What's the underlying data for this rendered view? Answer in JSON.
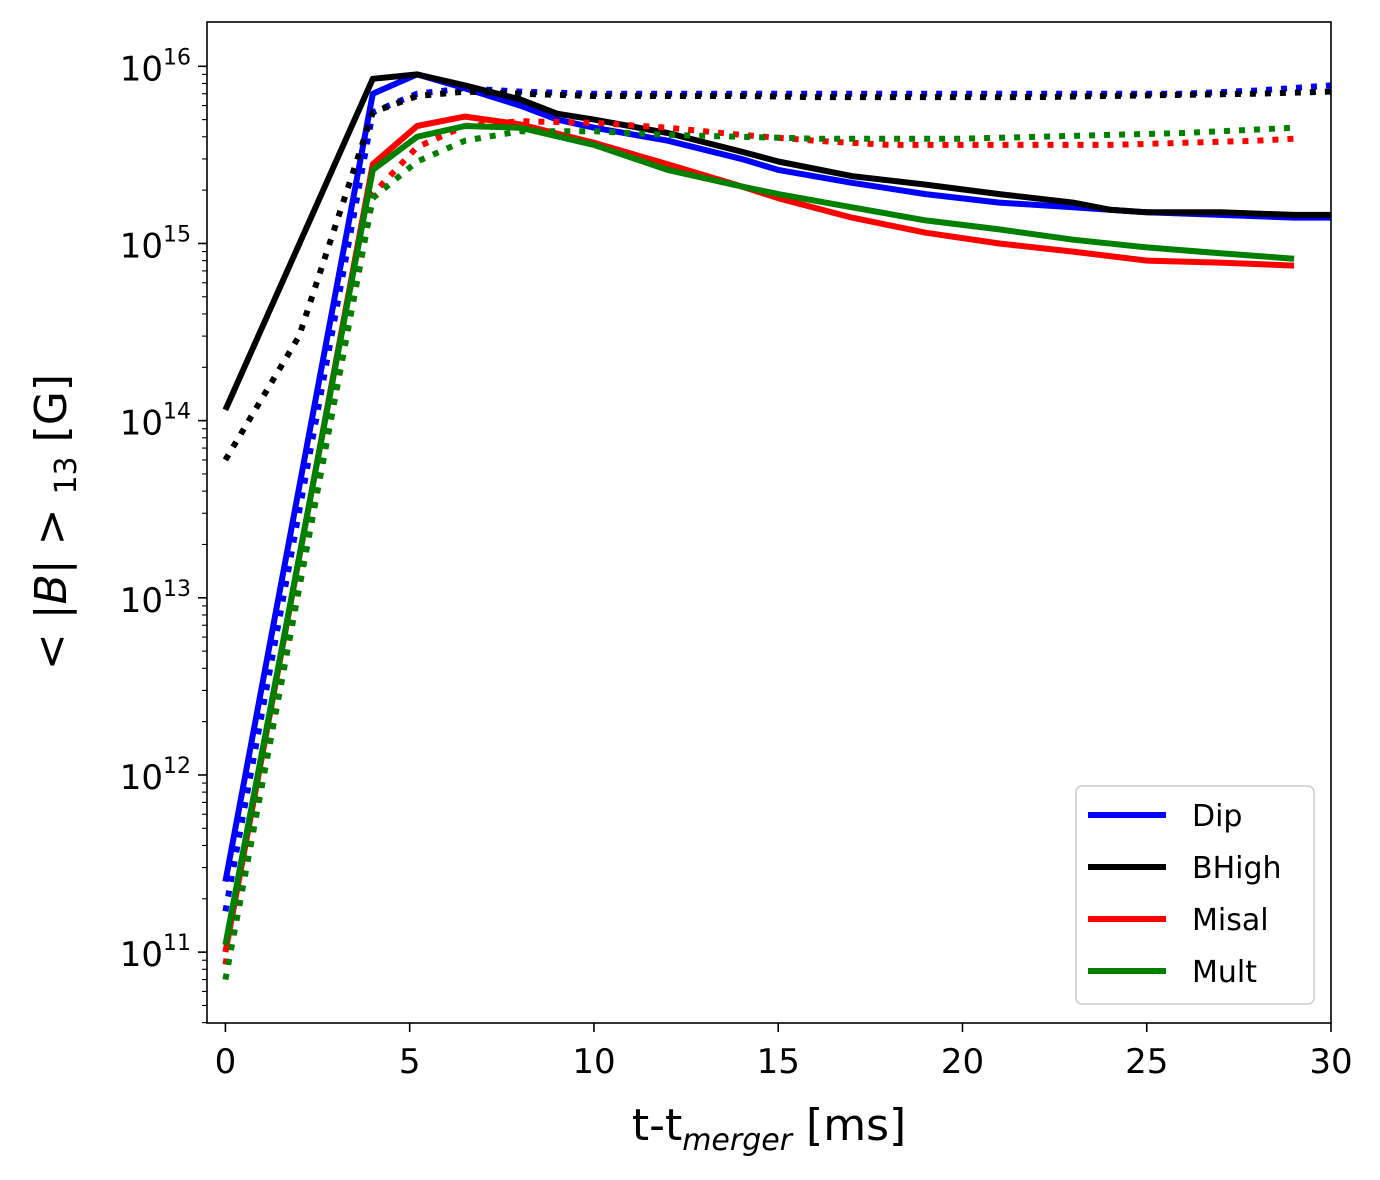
{
  "chart_data": {
    "type": "line",
    "title": "",
    "xlabel": {
      "main": "t-t",
      "sub": "merger",
      "unit": " [ms]"
    },
    "ylabel": {
      "prefix": "< |",
      "var": "B",
      "mid": "| > ",
      "sub": "13",
      "unit": " [G]"
    },
    "xlim": [
      -0.5,
      30
    ],
    "ylim_log10": [
      10.6,
      16.25
    ],
    "y_scale": "log",
    "x_ticks": [
      0,
      5,
      10,
      15,
      20,
      25,
      30
    ],
    "x_tick_labels": [
      "0",
      "5",
      "10",
      "15",
      "20",
      "25",
      "30"
    ],
    "y_ticks": [
      {
        "base": "10",
        "exp": "11",
        "value_log10": 11
      },
      {
        "base": "10",
        "exp": "12",
        "value_log10": 12
      },
      {
        "base": "10",
        "exp": "13",
        "value_log10": 13
      },
      {
        "base": "10",
        "exp": "14",
        "value_log10": 14
      },
      {
        "base": "10",
        "exp": "15",
        "value_log10": 15
      },
      {
        "base": "10",
        "exp": "16",
        "value_log10": 16
      }
    ],
    "legend_position": "bottom-right",
    "legend": [
      {
        "name": "Dip",
        "color": "#0000ff"
      },
      {
        "name": "BHigh",
        "color": "#000000"
      },
      {
        "name": "Misal",
        "color": "#ff0000"
      },
      {
        "name": "Mult",
        "color": "#008000"
      }
    ],
    "series": [
      {
        "name": "Dip",
        "style": "solid",
        "color": "#0000ff",
        "x": [
          0,
          4,
          5.2,
          6.5,
          8,
          9,
          10,
          12,
          14,
          15,
          17,
          19,
          21,
          23,
          25,
          27,
          29,
          30
        ],
        "y": [
          250000000000.0,
          7000000000000000.0,
          9000000000000000.0,
          7500000000000000.0,
          6000000000000000.0,
          5000000000000000.0,
          4500000000000000.0,
          3800000000000000.0,
          3000000000000000.0,
          2600000000000000.0,
          2200000000000000.0,
          1900000000000000.0,
          1700000000000000.0,
          1600000000000000.0,
          1500000000000000.0,
          1450000000000000.0,
          1400000000000000.0,
          1400000000000000.0
        ]
      },
      {
        "name": "Dip",
        "style": "dotted",
        "color": "#0000ff",
        "x": [
          0,
          4,
          5.2,
          6.5,
          8,
          10,
          12,
          14,
          16,
          18,
          20,
          22,
          24,
          26,
          28,
          30
        ],
        "y": [
          170000000000.0,
          5500000000000000.0,
          7000000000000000.0,
          7500000000000000.0,
          7200000000000000.0,
          7000000000000000.0,
          7000000000000000.0,
          7000000000000000.0,
          7000000000000000.0,
          7000000000000000.0,
          7000000000000000.0,
          7000000000000000.0,
          7000000000000000.0,
          7000000000000000.0,
          7300000000000000.0,
          7800000000000000.0
        ]
      },
      {
        "name": "BHigh",
        "style": "solid",
        "color": "#000000",
        "x": [
          0,
          4,
          5.2,
          6.5,
          8,
          9,
          10,
          12,
          14,
          15,
          17,
          19,
          21,
          23,
          24,
          25,
          27,
          29,
          30
        ],
        "y": [
          115000000000000.0,
          8500000000000000.0,
          9000000000000000.0,
          7800000000000000.0,
          6500000000000000.0,
          5400000000000000.0,
          5000000000000000.0,
          4200000000000000.0,
          3300000000000000.0,
          2900000000000000.0,
          2400000000000000.0,
          2150000000000000.0,
          1900000000000000.0,
          1700000000000000.0,
          1550000000000000.0,
          1500000000000000.0,
          1500000000000000.0,
          1450000000000000.0,
          1450000000000000.0
        ]
      },
      {
        "name": "BHigh",
        "style": "dotted",
        "color": "#000000",
        "x": [
          0,
          2,
          4,
          5.2,
          6.5,
          8,
          10,
          12,
          14,
          16,
          18,
          20,
          22,
          24,
          26,
          28,
          30
        ],
        "y": [
          60000000000000.0,
          300000000000000.0,
          5500000000000000.0,
          6800000000000000.0,
          7200000000000000.0,
          7000000000000000.0,
          6800000000000000.0,
          6800000000000000.0,
          6800000000000000.0,
          6700000000000000.0,
          6700000000000000.0,
          6700000000000000.0,
          6700000000000000.0,
          6800000000000000.0,
          6900000000000000.0,
          7000000000000000.0,
          7200000000000000.0
        ]
      },
      {
        "name": "Misal",
        "style": "solid",
        "color": "#ff0000",
        "x": [
          0,
          4,
          5.2,
          6.5,
          8,
          10,
          12,
          14,
          15,
          17,
          19,
          21,
          23,
          25,
          27,
          29
        ],
        "y": [
          100000000000.0,
          2800000000000000.0,
          4600000000000000.0,
          5200000000000000.0,
          4700000000000000.0,
          3700000000000000.0,
          2800000000000000.0,
          2100000000000000.0,
          1800000000000000.0,
          1400000000000000.0,
          1150000000000000.0,
          1000000000000000.0,
          900000000000000.0,
          800000000000000.0,
          780000000000000.0,
          750000000000000.0
        ]
      },
      {
        "name": "Misal",
        "style": "dotted",
        "color": "#ff0000",
        "x": [
          0,
          4,
          5.2,
          6.5,
          8,
          10,
          12,
          14,
          16,
          18,
          20,
          22,
          24,
          26,
          28,
          29
        ],
        "y": [
          85000000000.0,
          1900000000000000.0,
          3500000000000000.0,
          4600000000000000.0,
          4900000000000000.0,
          4800000000000000.0,
          4500000000000000.0,
          4100000000000000.0,
          3800000000000000.0,
          3600000000000000.0,
          3600000000000000.0,
          3600000000000000.0,
          3600000000000000.0,
          3700000000000000.0,
          3800000000000000.0,
          3900000000000000.0
        ]
      },
      {
        "name": "Mult",
        "style": "solid",
        "color": "#008000",
        "x": [
          0,
          4,
          5.2,
          6.5,
          8,
          10,
          12,
          14,
          15,
          17,
          19,
          21,
          23,
          25,
          27,
          29
        ],
        "y": [
          110000000000.0,
          2600000000000000.0,
          4000000000000000.0,
          4600000000000000.0,
          4500000000000000.0,
          3600000000000000.0,
          2600000000000000.0,
          2100000000000000.0,
          1900000000000000.0,
          1600000000000000.0,
          1350000000000000.0,
          1200000000000000.0,
          1050000000000000.0,
          950000000000000.0,
          880000000000000.0,
          820000000000000.0
        ]
      },
      {
        "name": "Mult",
        "style": "dotted",
        "color": "#008000",
        "x": [
          0,
          4,
          5.2,
          6.5,
          8,
          10,
          12,
          14,
          16,
          18,
          20,
          22,
          24,
          26,
          28,
          29
        ],
        "y": [
          70000000000.0,
          1800000000000000.0,
          2900000000000000.0,
          3800000000000000.0,
          4300000000000000.0,
          4300000000000000.0,
          4100000000000000.0,
          4000000000000000.0,
          3900000000000000.0,
          3900000000000000.0,
          3900000000000000.0,
          4000000000000000.0,
          4100000000000000.0,
          4200000000000000.0,
          4400000000000000.0,
          4500000000000000.0
        ]
      }
    ]
  }
}
